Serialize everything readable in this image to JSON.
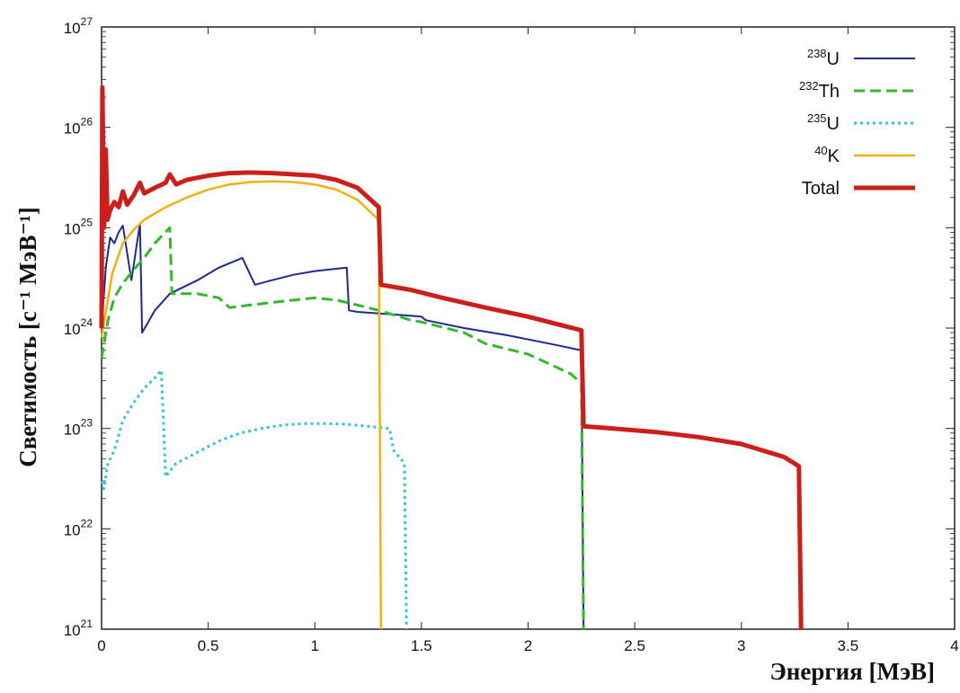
{
  "chart_data": {
    "type": "line",
    "xlabel": "Энергия [МэВ]",
    "ylabel": "Светимость [с⁻¹ МэВ⁻¹]",
    "xlim": [
      0,
      4
    ],
    "ylim_log10": [
      21,
      27
    ],
    "y_scale": "log",
    "grid": false,
    "legend_position": "top-right",
    "x_ticks": [
      "0",
      "0.5",
      "1",
      "1.5",
      "2",
      "2.5",
      "3",
      "3.5",
      "4"
    ],
    "y_ticks": [
      {
        "base": "10",
        "exp": "21"
      },
      {
        "base": "10",
        "exp": "22"
      },
      {
        "base": "10",
        "exp": "23"
      },
      {
        "base": "10",
        "exp": "24"
      },
      {
        "base": "10",
        "exp": "25"
      },
      {
        "base": "10",
        "exp": "26"
      },
      {
        "base": "10",
        "exp": "27"
      }
    ],
    "series": [
      {
        "name": "238U",
        "legend_sup": "238",
        "legend_main": "U",
        "color": "#1e2a8f",
        "dash": "solid",
        "width": 2,
        "x": [
          0.0,
          0.02,
          0.04,
          0.06,
          0.08,
          0.1,
          0.14,
          0.18,
          0.19,
          0.25,
          0.32,
          0.45,
          0.55,
          0.66,
          0.7,
          0.72,
          0.8,
          0.9,
          1.0,
          1.1,
          1.15,
          1.16,
          1.2,
          1.4,
          1.5,
          1.52,
          1.7,
          1.9,
          2.1,
          2.25,
          2.26
        ],
        "y": [
          1e+24,
          4e+24,
          8e+24,
          7e+24,
          9e+24,
          1.05e+25,
          3e+24,
          1.1e+25,
          9e+23,
          1.5e+24,
          2.2e+24,
          3e+24,
          4e+24,
          5e+24,
          3.3e+24,
          2.7e+24,
          3e+24,
          3.4e+24,
          3.7e+24,
          3.9e+24,
          4e+24,
          1.5e+24,
          1.45e+24,
          1.35e+24,
          1.3e+24,
          1.2e+24,
          1e+24,
          8.5e+23,
          7e+23,
          6e+23,
          1e+21
        ]
      },
      {
        "name": "232Th",
        "legend_sup": "232",
        "legend_main": "Th",
        "color": "#35b82b",
        "dash": "dashed",
        "width": 3,
        "x": [
          0.0,
          0.03,
          0.06,
          0.1,
          0.15,
          0.2,
          0.25,
          0.32,
          0.33,
          0.45,
          0.55,
          0.6,
          0.7,
          0.8,
          0.9,
          1.0,
          1.1,
          1.15,
          1.3,
          1.45,
          1.5,
          1.7,
          1.8,
          2.0,
          2.2,
          2.25,
          2.26
        ],
        "y": [
          5e+23,
          1.2e+24,
          2e+24,
          2.8e+24,
          3.8e+24,
          5e+24,
          7e+24,
          1e+25,
          2.2e+24,
          2.2e+24,
          2e+24,
          1.6e+24,
          1.7e+24,
          1.8e+24,
          1.9e+24,
          2e+24,
          1.9e+24,
          1.8e+24,
          1.5e+24,
          1.2e+24,
          1.15e+24,
          9e+23,
          7e+23,
          5.5e+23,
          3.5e+23,
          2.8e+23,
          1e+21
        ]
      },
      {
        "name": "235U",
        "legend_sup": "235",
        "legend_main": "U",
        "color": "#31c6d6",
        "dash": "dotted",
        "width": 3,
        "x": [
          0.0,
          0.01,
          0.03,
          0.06,
          0.1,
          0.15,
          0.2,
          0.25,
          0.28,
          0.29,
          0.3,
          0.35,
          0.45,
          0.55,
          0.65,
          0.75,
          0.85,
          0.95,
          1.05,
          1.15,
          1.25,
          1.35,
          1.37,
          1.42,
          1.43
        ],
        "y": [
          3e+22,
          2.5e+22,
          4.5e+22,
          6e+22,
          1.2e+23,
          1.8e+23,
          2.5e+23,
          3.2e+23,
          3.8e+23,
          1.2e+23,
          3.3e+22,
          4.5e+22,
          5.8e+22,
          7.5e+22,
          9e+22,
          1e+23,
          1.08e+23,
          1.12e+23,
          1.12e+23,
          1.1e+23,
          1.05e+23,
          1e+23,
          6e+22,
          4.5e+22,
          1e+21
        ]
      },
      {
        "name": "40K",
        "legend_sup": "40",
        "legend_main": "K",
        "color": "#f0b116",
        "dash": "solid",
        "width": 2.5,
        "x": [
          0.0,
          0.05,
          0.1,
          0.15,
          0.2,
          0.3,
          0.4,
          0.5,
          0.6,
          0.7,
          0.8,
          0.9,
          1.0,
          1.1,
          1.2,
          1.25,
          1.3,
          1.31
        ],
        "y": [
          8e+23,
          3.5e+24,
          7e+24,
          9.5e+24,
          1.2e+25,
          1.6e+25,
          2e+25,
          2.4e+25,
          2.7e+25,
          2.85e+25,
          2.9e+25,
          2.85e+25,
          2.7e+25,
          2.4e+25,
          1.9e+25,
          1.5e+25,
          1.2e+25,
          1e+21
        ]
      },
      {
        "name": "Total",
        "legend_sup": "",
        "legend_main": "Total",
        "color": "#cc1f1a",
        "dash": "solid",
        "width": 5,
        "x": [
          0.0,
          0.004,
          0.012,
          0.02,
          0.028,
          0.04,
          0.06,
          0.08,
          0.1,
          0.12,
          0.15,
          0.18,
          0.2,
          0.25,
          0.3,
          0.32,
          0.35,
          0.4,
          0.5,
          0.6,
          0.7,
          0.8,
          0.9,
          1.0,
          1.1,
          1.2,
          1.3,
          1.31,
          1.45,
          1.6,
          1.8,
          2.0,
          2.25,
          2.26,
          2.4,
          2.6,
          2.8,
          3.0,
          3.2,
          3.27,
          3.28
        ],
        "y": [
          1e+24,
          2.5e+26,
          1e+25,
          6e+25,
          1.2e+25,
          1.5e+25,
          1.8e+25,
          1.6e+25,
          2.3e+25,
          1.7e+25,
          2.1e+25,
          2.8e+25,
          2.2e+25,
          2.5e+25,
          2.8e+25,
          3.4e+25,
          2.7e+25,
          3e+25,
          3.3e+25,
          3.5e+25,
          3.55e+25,
          3.5e+25,
          3.4e+25,
          3.3e+25,
          3e+25,
          2.5e+25,
          1.6e+25,
          2.7e+24,
          2.4e+24,
          2e+24,
          1.6e+24,
          1.3e+24,
          9.5e+23,
          1.05e+23,
          1e+23,
          9.2e+22,
          8.2e+22,
          7e+22,
          5.2e+22,
          4.2e+22,
          1e+21
        ]
      }
    ]
  }
}
